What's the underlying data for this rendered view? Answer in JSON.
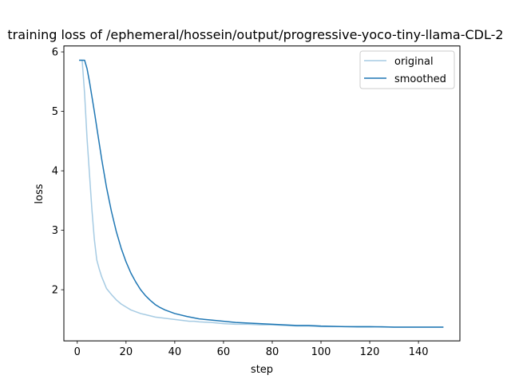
{
  "chart_data": {
    "type": "line",
    "title": "training loss of /ephemeral/hossein/output/progressive-yoco-tiny-llama-CDL-2",
    "xlabel": "step",
    "ylabel": "loss",
    "xlim": [
      -5.5,
      157
    ],
    "ylim": [
      1.14,
      6.1
    ],
    "xticks": [
      0,
      20,
      40,
      60,
      80,
      100,
      120,
      140
    ],
    "yticks": [
      2,
      3,
      4,
      5,
      6
    ],
    "grid": false,
    "legend_position": "top-right",
    "series": [
      {
        "name": "original",
        "color": "#a6cbe3",
        "x": [
          1,
          2,
          3,
          4,
          5,
          6,
          7,
          8,
          9,
          10,
          12,
          14,
          16,
          18,
          20,
          22,
          24,
          26,
          28,
          30,
          32,
          34,
          36,
          38,
          40,
          42,
          44,
          46,
          48,
          50,
          55,
          60,
          65,
          70,
          75,
          80,
          85,
          90,
          95,
          100,
          105,
          110,
          115,
          120,
          125,
          130,
          135,
          140,
          145,
          150
        ],
        "y": [
          5.86,
          5.86,
          5.3,
          4.55,
          3.95,
          3.35,
          2.85,
          2.5,
          2.35,
          2.22,
          2.02,
          1.92,
          1.83,
          1.76,
          1.71,
          1.66,
          1.63,
          1.6,
          1.58,
          1.56,
          1.54,
          1.53,
          1.52,
          1.51,
          1.5,
          1.49,
          1.48,
          1.47,
          1.47,
          1.46,
          1.45,
          1.43,
          1.42,
          1.42,
          1.41,
          1.41,
          1.4,
          1.39,
          1.39,
          1.38,
          1.38,
          1.38,
          1.37,
          1.37,
          1.38,
          1.37,
          1.37,
          1.37,
          1.37,
          1.37
        ]
      },
      {
        "name": "smoothed",
        "color": "#1f77b4",
        "x": [
          1,
          2,
          3,
          4,
          5,
          6,
          7,
          8,
          10,
          12,
          14,
          16,
          18,
          20,
          22,
          24,
          26,
          28,
          30,
          32,
          34,
          36,
          38,
          40,
          45,
          50,
          55,
          60,
          65,
          70,
          75,
          80,
          85,
          90,
          95,
          100,
          110,
          120,
          130,
          140,
          150
        ],
        "y": [
          5.86,
          5.86,
          5.86,
          5.72,
          5.5,
          5.25,
          5.0,
          4.73,
          4.2,
          3.72,
          3.32,
          2.98,
          2.7,
          2.47,
          2.28,
          2.13,
          2.0,
          1.9,
          1.82,
          1.75,
          1.7,
          1.66,
          1.63,
          1.6,
          1.55,
          1.51,
          1.49,
          1.47,
          1.45,
          1.44,
          1.43,
          1.42,
          1.41,
          1.4,
          1.4,
          1.39,
          1.38,
          1.38,
          1.37,
          1.37,
          1.37
        ]
      }
    ]
  }
}
